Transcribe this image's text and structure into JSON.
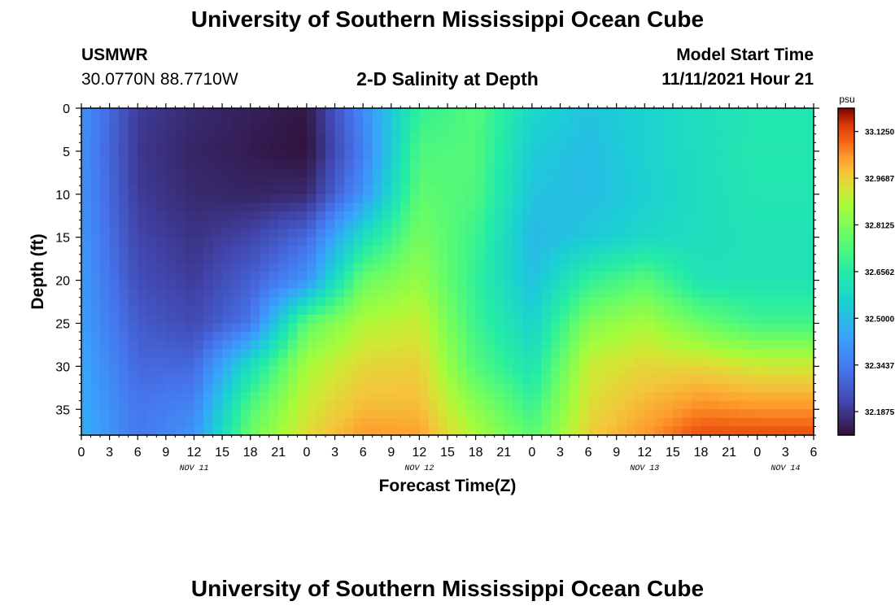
{
  "header": {
    "title": "University of Southern Mississippi Ocean Cube",
    "station": "USMWR",
    "coords": "30.0770N  88.7710W",
    "subtitle": "2-D Salinity at Depth",
    "model_start_label": "Model Start Time",
    "model_start_value": "11/11/2021 Hour 21"
  },
  "footer": {
    "title": "University of Southern Mississippi Ocean Cube"
  },
  "chart_data": {
    "type": "heatmap",
    "title": "2-D Salinity at Depth",
    "xlabel": "Forecast Time(Z)",
    "ylabel": "Depth (ft)",
    "x_hours": [
      0,
      6,
      12,
      18,
      24,
      30,
      36,
      42,
      48,
      54,
      60,
      66,
      72,
      78
    ],
    "x_tick_labels": [
      "0",
      "3",
      "6",
      "9",
      "12",
      "15",
      "18",
      "21",
      "0",
      "3",
      "6",
      "9",
      "12",
      "15",
      "18",
      "21",
      "0",
      "3",
      "6",
      "9",
      "12",
      "15",
      "18",
      "21",
      "0",
      "3",
      "6"
    ],
    "x_date_labels": [
      {
        "label": "NOV 11",
        "tick_index": 4
      },
      {
        "label": "NOV 12",
        "tick_index": 12
      },
      {
        "label": "NOV 13",
        "tick_index": 20
      },
      {
        "label": "NOV 14",
        "tick_index": 25
      }
    ],
    "y_depths": [
      0,
      5,
      10,
      15,
      20,
      25,
      30,
      35,
      38
    ],
    "y_tick_labels": [
      "0",
      "5",
      "10",
      "15",
      "20",
      "25",
      "30",
      "35"
    ],
    "y_tick_values": [
      0,
      5,
      10,
      15,
      20,
      25,
      30,
      35
    ],
    "xlim": [
      0,
      78
    ],
    "ylim": [
      0,
      38
    ],
    "y_inverted": true,
    "colorbar": {
      "unit": "psu",
      "min": 32.109,
      "max": 33.203,
      "tick_values": [
        33.125,
        32.9687,
        32.8125,
        32.6562,
        32.5,
        32.3437,
        32.1875
      ],
      "tick_labels": [
        "33.1250",
        "32.9687",
        "32.8125",
        "32.6562",
        "32.5000",
        "32.3437",
        "32.1875"
      ]
    },
    "salinity_grid_psu": [
      [
        32.4,
        32.2,
        32.16,
        32.14,
        32.12,
        32.38,
        32.68,
        32.74,
        32.58,
        32.52,
        32.56,
        32.6,
        32.63,
        32.63
      ],
      [
        32.4,
        32.19,
        32.15,
        32.13,
        32.11,
        32.35,
        32.73,
        32.74,
        32.54,
        32.5,
        32.56,
        32.6,
        32.64,
        32.64
      ],
      [
        32.4,
        32.2,
        32.16,
        32.15,
        32.16,
        32.4,
        32.76,
        32.73,
        32.52,
        32.5,
        32.55,
        32.6,
        32.63,
        32.63
      ],
      [
        32.41,
        32.22,
        32.18,
        32.22,
        32.3,
        32.6,
        32.8,
        32.7,
        32.49,
        32.53,
        32.58,
        32.6,
        32.62,
        32.62
      ],
      [
        32.42,
        32.24,
        32.2,
        32.28,
        32.4,
        32.78,
        32.85,
        32.68,
        32.51,
        32.68,
        32.75,
        32.62,
        32.62,
        32.62
      ],
      [
        32.43,
        32.27,
        32.23,
        32.33,
        32.76,
        32.89,
        32.92,
        32.7,
        32.56,
        32.82,
        32.88,
        32.78,
        32.71,
        32.71
      ],
      [
        32.45,
        32.3,
        32.3,
        32.6,
        32.88,
        32.96,
        32.97,
        32.74,
        32.62,
        32.92,
        32.96,
        32.96,
        32.93,
        32.93
      ],
      [
        32.46,
        32.33,
        32.37,
        32.74,
        32.93,
        33.0,
        33.0,
        32.84,
        32.7,
        32.95,
        33.01,
        33.06,
        33.05,
        33.05
      ],
      [
        32.47,
        32.34,
        32.4,
        32.78,
        32.95,
        33.04,
        33.03,
        32.88,
        32.75,
        32.97,
        33.04,
        33.12,
        33.12,
        33.12
      ]
    ]
  }
}
